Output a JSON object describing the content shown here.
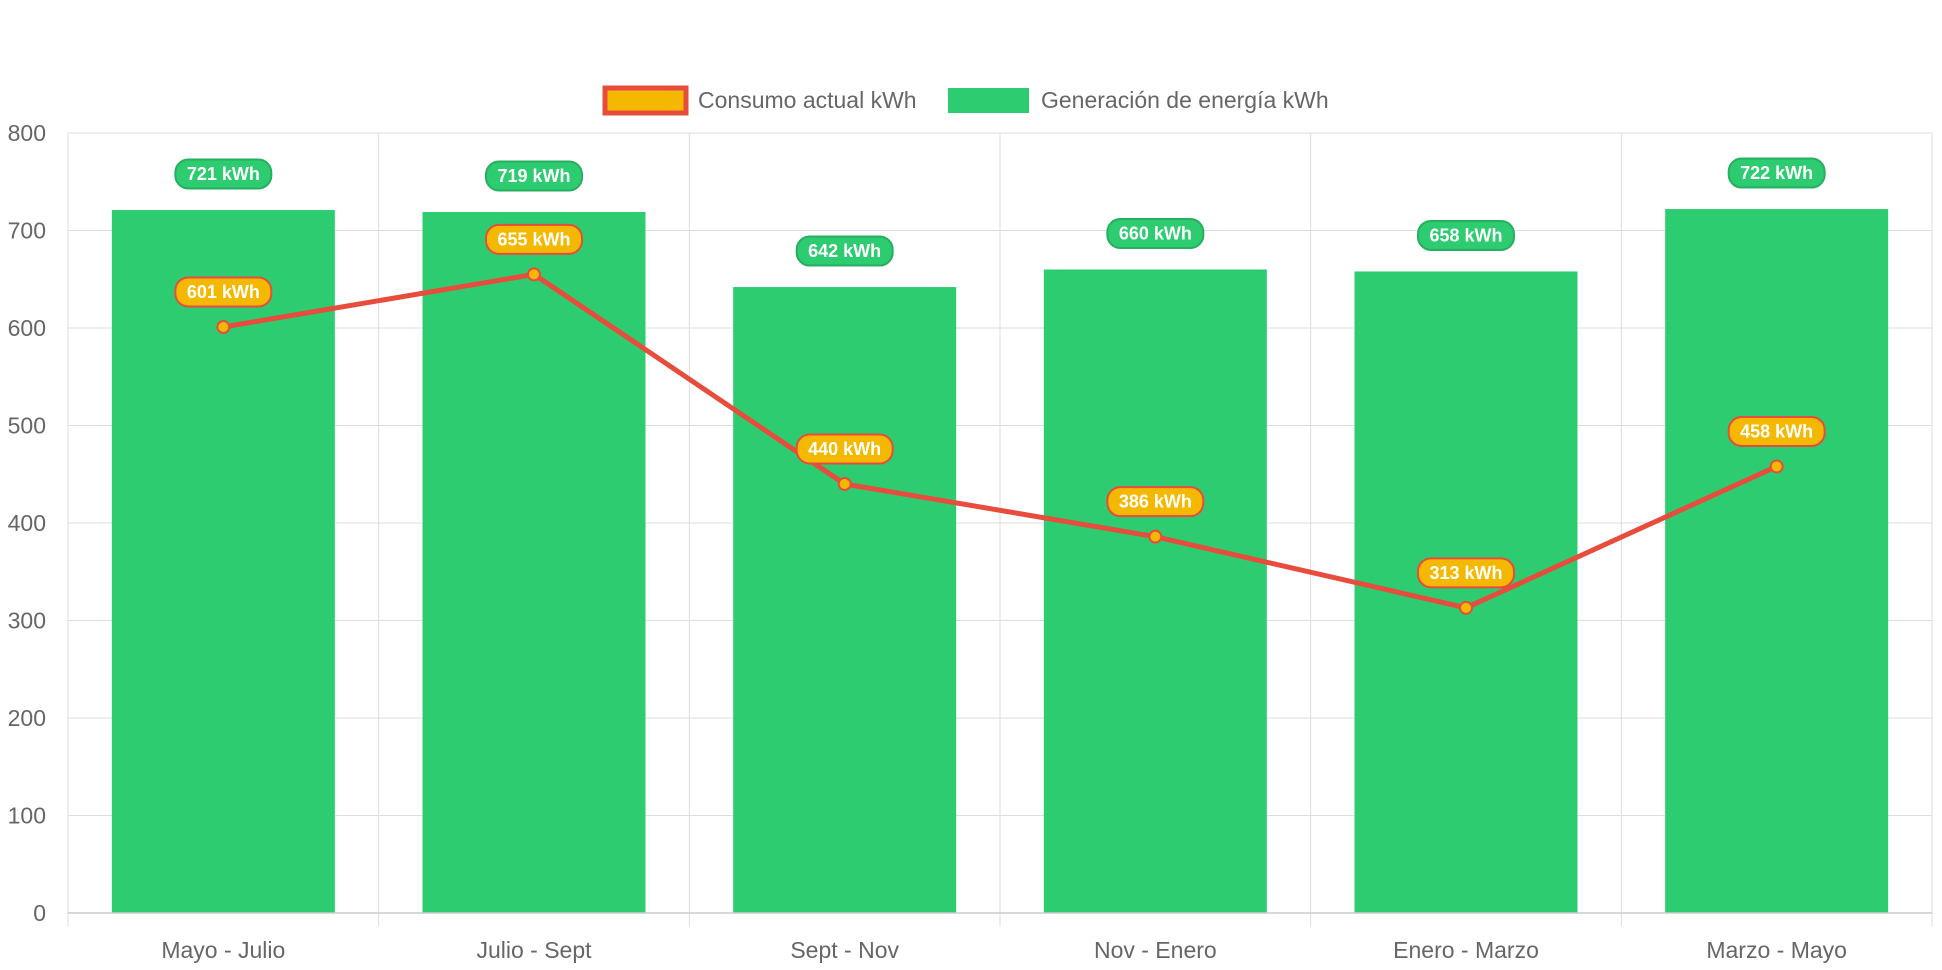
{
  "chart_data": {
    "type": "bar",
    "categories": [
      "Mayo - Julio",
      "Julio - Sept",
      "Sept - Nov",
      "Nov - Enero",
      "Enero - Marzo",
      "Marzo - Mayo"
    ],
    "series": [
      {
        "name": "Consumo actual kWh",
        "type": "line",
        "values": [
          601,
          655,
          440,
          386,
          313,
          458
        ],
        "labels": [
          "601 kWh",
          "655 kWh",
          "440 kWh",
          "386 kWh",
          "313 kWh",
          "458 kWh"
        ],
        "color": "#e74c3c",
        "fill": "#f5b800"
      },
      {
        "name": "Generación de energía kWh",
        "type": "bar",
        "values": [
          721,
          719,
          642,
          660,
          658,
          722
        ],
        "labels": [
          "721 kWh",
          "719 kWh",
          "642 kWh",
          "660 kWh",
          "658 kWh",
          "722 kWh"
        ],
        "color": "#2ecc71",
        "border": "#27ae60"
      }
    ],
    "y_ticks": [
      "0",
      "100",
      "200",
      "300",
      "400",
      "500",
      "600",
      "700",
      "800"
    ],
    "ylim": [
      0,
      800
    ],
    "grid": true,
    "legend": "top-center"
  },
  "colors": {
    "grid": "#dddddd",
    "tick_text": "#666666"
  }
}
